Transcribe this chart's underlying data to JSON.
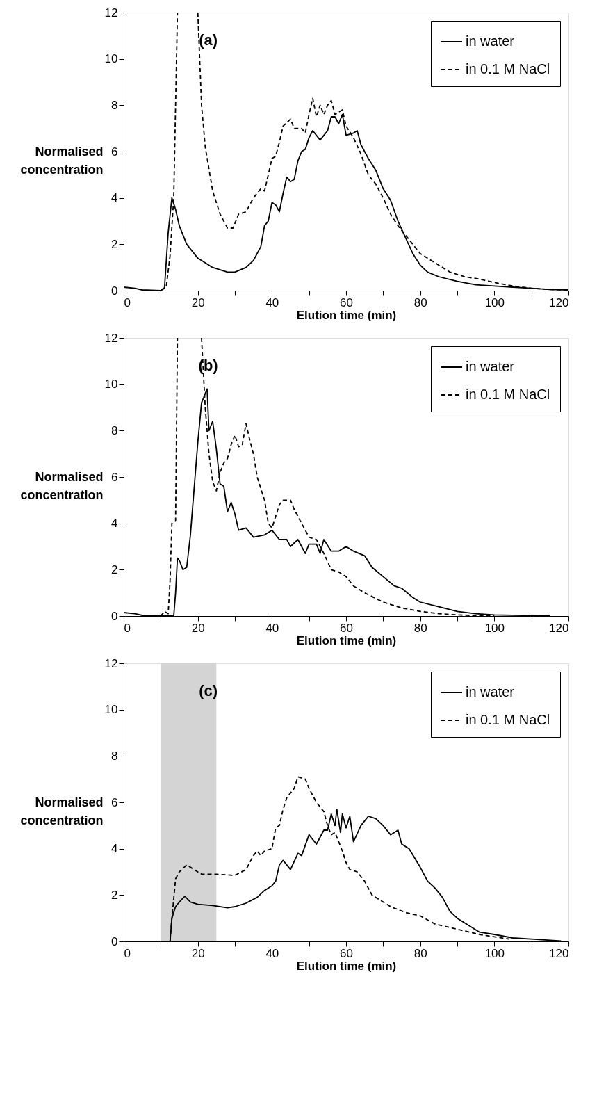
{
  "chart_data": [
    {
      "type": "line",
      "xlabel": "Elution time (min)",
      "ylabel": "Normalised concentration",
      "annotations": [
        "(a)"
      ],
      "legend": "top right",
      "grid": false,
      "xlim": [
        0,
        120
      ],
      "ylim": [
        0,
        12
      ],
      "xticks": [
        0,
        {
          "value": 10,
          "label": null
        },
        20,
        {
          "value": 30,
          "label": null
        },
        40,
        {
          "value": 50,
          "label": null
        },
        60,
        {
          "value": 70,
          "label": null
        },
        80,
        {
          "value": 90,
          "label": null
        },
        100,
        {
          "value": 110,
          "label": null
        },
        120
      ],
      "yticks": [
        0,
        2,
        4,
        6,
        8,
        10,
        12
      ],
      "series": [
        {
          "name": "in water",
          "color": "#000000",
          "line_style": "solid",
          "x": [
            0,
            3,
            5,
            10,
            11,
            12,
            13,
            14,
            15,
            17,
            20,
            24,
            28,
            30,
            33,
            35,
            37,
            38,
            39,
            40,
            41,
            42,
            43,
            44,
            45,
            46,
            47,
            48,
            49,
            50,
            51,
            53,
            55,
            56,
            57,
            58,
            59,
            60,
            62,
            63,
            64,
            66,
            68,
            70,
            72,
            74,
            76,
            78,
            80,
            82,
            85,
            90,
            95,
            100,
            105,
            110,
            115,
            120
          ],
          "values": [
            0.15,
            0.1,
            0.03,
            0,
            0.1,
            2.5,
            4.0,
            3.5,
            2.8,
            2.0,
            1.4,
            1.0,
            0.8,
            0.8,
            1.0,
            1.3,
            1.9,
            2.8,
            3.0,
            3.8,
            3.7,
            3.4,
            4.2,
            4.9,
            4.7,
            4.8,
            5.6,
            6.0,
            6.1,
            6.6,
            6.9,
            6.5,
            6.9,
            7.5,
            7.5,
            7.2,
            7.6,
            6.7,
            6.8,
            6.9,
            6.3,
            5.7,
            5.2,
            4.4,
            3.9,
            3.0,
            2.3,
            1.6,
            1.1,
            0.8,
            0.6,
            0.4,
            0.25,
            0.2,
            0.15,
            0.1,
            0.05,
            0.03
          ]
        },
        {
          "name": "in 0.1 M NaCl",
          "color": "#000000",
          "line_style": "dashed",
          "x": [
            10,
            11.5,
            12.5,
            13.5,
            14.5,
            17,
            20,
            21,
            22,
            24,
            26,
            28,
            29.5,
            31,
            33,
            35,
            37,
            38,
            40,
            41,
            42,
            43,
            45,
            46,
            48,
            49,
            50,
            51,
            52,
            53,
            54,
            55,
            56,
            57,
            59,
            60,
            62,
            64,
            66,
            68,
            70,
            72,
            74,
            76,
            78,
            80,
            84,
            88,
            92,
            96,
            100,
            105,
            110,
            115,
            120
          ],
          "values": [
            0,
            0.2,
            1.5,
            4,
            12,
            null,
            12,
            8,
            6.2,
            4.3,
            3.3,
            2.7,
            2.7,
            3.3,
            3.4,
            4.0,
            4.4,
            4.3,
            5.7,
            5.8,
            6.4,
            7.1,
            7.4,
            7.0,
            7.0,
            6.8,
            7.6,
            8.3,
            7.5,
            8.0,
            7.6,
            8.0,
            8.2,
            7.6,
            7.8,
            7.1,
            6.6,
            5.9,
            5.0,
            4.6,
            4.0,
            3.3,
            2.8,
            2.4,
            2.0,
            1.6,
            1.2,
            0.8,
            0.6,
            0.5,
            0.35,
            0.2,
            0.1,
            0.05,
            0.03
          ]
        }
      ]
    },
    {
      "type": "line",
      "xlabel": "Elution time (min)",
      "ylabel": "Normalised concentration",
      "annotations": [
        "(b)"
      ],
      "legend": "top right",
      "grid": false,
      "xlim": [
        0,
        120
      ],
      "ylim": [
        0,
        12
      ],
      "xticks": [
        0,
        {
          "value": 10,
          "label": null
        },
        20,
        {
          "value": 30,
          "label": null
        },
        40,
        {
          "value": 50,
          "label": null
        },
        60,
        {
          "value": 70,
          "label": null
        },
        80,
        {
          "value": 90,
          "label": null
        },
        100,
        {
          "value": 110,
          "label": null
        },
        120
      ],
      "yticks": [
        0,
        2,
        4,
        6,
        8,
        10,
        12
      ],
      "series": [
        {
          "name": "in water",
          "color": "#000000",
          "line_style": "solid",
          "x": [
            0,
            3,
            5,
            13.5,
            14,
            14.5,
            15,
            16,
            17,
            18,
            19,
            20,
            21,
            22,
            22.5,
            23,
            24,
            25,
            26,
            27,
            28,
            29,
            30,
            31,
            33,
            35,
            38,
            40,
            42,
            44,
            45,
            47,
            49,
            50,
            52,
            53,
            54,
            56,
            58,
            60,
            62,
            65,
            67,
            70,
            73,
            75,
            78,
            80,
            85,
            90,
            95,
            100,
            110,
            115
          ],
          "values": [
            0.15,
            0.1,
            0.03,
            0,
            1,
            2.5,
            2.4,
            2.0,
            2.1,
            3.5,
            5.5,
            7.5,
            9.2,
            9.6,
            9.8,
            8.0,
            8.4,
            7.2,
            5.7,
            5.6,
            4.5,
            4.9,
            4.4,
            3.7,
            3.8,
            3.4,
            3.5,
            3.7,
            3.3,
            3.3,
            3.0,
            3.3,
            2.7,
            3.1,
            3.1,
            2.7,
            3.3,
            2.8,
            2.8,
            3.0,
            2.8,
            2.6,
            2.1,
            1.7,
            1.3,
            1.2,
            0.8,
            0.6,
            0.4,
            0.2,
            0.1,
            0.05,
            0.02,
            0
          ]
        },
        {
          "name": "in 0.1 M NaCl",
          "color": "#000000",
          "line_style": "dashed",
          "x": [
            10,
            11,
            12,
            12.5,
            13,
            14,
            14.5,
            17,
            21,
            22,
            23,
            24,
            25,
            26,
            27,
            28,
            29,
            30,
            31,
            32,
            33,
            34,
            35,
            36,
            38,
            39,
            40,
            42,
            43,
            45,
            46,
            48,
            50,
            52,
            54,
            56,
            58,
            60,
            62,
            65,
            70,
            75,
            80,
            85,
            90,
            95,
            100
          ],
          "values": [
            0,
            0.2,
            0.1,
            1.5,
            4.0,
            4.1,
            12,
            null,
            12,
            9,
            7,
            5.8,
            5.4,
            6.2,
            6.6,
            6.8,
            7.4,
            7.8,
            7.3,
            7.4,
            8.3,
            7.6,
            7.0,
            6.0,
            5.0,
            4.0,
            3.8,
            4.8,
            5.0,
            5.0,
            4.6,
            4.0,
            3.4,
            3.3,
            2.7,
            2.0,
            1.9,
            1.7,
            1.3,
            1.0,
            0.6,
            0.35,
            0.2,
            0.1,
            0.05,
            0.02,
            0
          ]
        }
      ]
    },
    {
      "type": "line",
      "xlabel": "Elution time (min)",
      "ylabel": "Normalised concentration",
      "annotations": [
        "(c)"
      ],
      "legend": "top right",
      "grid": false,
      "xlim": [
        0,
        120
      ],
      "ylim": [
        0,
        12
      ],
      "xticks": [
        0,
        {
          "value": 10,
          "label": null
        },
        20,
        {
          "value": 30,
          "label": null
        },
        40,
        {
          "value": 50,
          "label": null
        },
        60,
        {
          "value": 70,
          "label": null
        },
        80,
        {
          "value": 90,
          "label": null
        },
        100,
        {
          "value": 110,
          "label": null
        },
        120
      ],
      "yticks": [
        0,
        2,
        4,
        6,
        8,
        10,
        12
      ],
      "bands": [
        {
          "axis": "x",
          "from": 10,
          "to": 25,
          "color": "#d4d4d4"
        }
      ],
      "series": [
        {
          "name": "in water",
          "color": "#000000",
          "line_style": "solid",
          "x": [
            12.5,
            13,
            14,
            15,
            16.5,
            18,
            20,
            24,
            28,
            30,
            33,
            36,
            38,
            40,
            41,
            42,
            43,
            45,
            47,
            48,
            50,
            51,
            52,
            54,
            55,
            56,
            57,
            57.5,
            58.5,
            59,
            60,
            61,
            62,
            64,
            66,
            68,
            70,
            72,
            74,
            75,
            77,
            80,
            82,
            84,
            86,
            88,
            90,
            93,
            96,
            100,
            105,
            110,
            118
          ],
          "values": [
            0,
            1.0,
            1.5,
            1.7,
            1.95,
            1.7,
            1.6,
            1.55,
            1.45,
            1.5,
            1.65,
            1.9,
            2.2,
            2.4,
            2.6,
            3.3,
            3.5,
            3.1,
            3.8,
            3.7,
            4.6,
            4.4,
            4.2,
            4.8,
            4.8,
            5.5,
            5.0,
            5.7,
            4.7,
            5.5,
            4.9,
            5.4,
            4.3,
            5.0,
            5.4,
            5.3,
            5.0,
            4.6,
            4.8,
            4.2,
            4.0,
            3.2,
            2.6,
            2.3,
            1.9,
            1.3,
            1.0,
            0.7,
            0.4,
            0.3,
            0.15,
            0.1,
            0.02
          ]
        },
        {
          "name": "in 0.1 M NaCl",
          "color": "#000000",
          "line_style": "dashed",
          "x": [
            12.5,
            13,
            14,
            15,
            17,
            19,
            21,
            25,
            30,
            33,
            35,
            36,
            37,
            38,
            40,
            41,
            42,
            43,
            44,
            46,
            47,
            49,
            50,
            52,
            54,
            55,
            56,
            57,
            58,
            59,
            60,
            61,
            63,
            65,
            67,
            69,
            72,
            76,
            80,
            84,
            88,
            92,
            96,
            100,
            104
          ],
          "values": [
            0,
            1.0,
            2.7,
            3.0,
            3.3,
            3.1,
            2.9,
            2.9,
            2.85,
            3.1,
            3.7,
            3.9,
            3.7,
            3.9,
            4.0,
            4.9,
            5.0,
            5.7,
            6.2,
            6.6,
            7.1,
            7.0,
            6.6,
            6.0,
            5.6,
            5.0,
            4.6,
            4.7,
            4.3,
            3.9,
            3.4,
            3.1,
            3.0,
            2.6,
            2.0,
            1.8,
            1.5,
            1.25,
            1.1,
            0.75,
            0.6,
            0.45,
            0.3,
            0.2,
            0.1
          ]
        }
      ]
    }
  ]
}
